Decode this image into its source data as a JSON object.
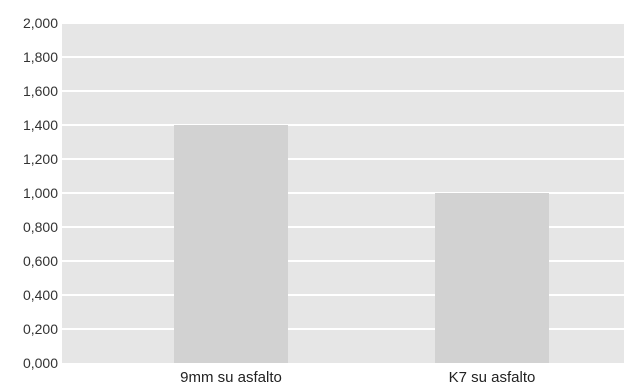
{
  "chart_data": {
    "type": "bar",
    "categories": [
      "9mm su asfalto",
      "K7 su asfalto"
    ],
    "values": [
      1.4,
      1.0
    ],
    "ylim": [
      0,
      2
    ],
    "yticks": [
      0,
      0.2,
      0.4,
      0.6,
      0.8,
      1.0,
      1.2,
      1.4,
      1.6,
      1.8,
      2.0
    ],
    "ytick_labels": [
      "0,000",
      "0,200",
      "0,400",
      "0,600",
      "0,800",
      "1,000",
      "1,200",
      "1,400",
      "1,600",
      "1,800",
      "2,000"
    ],
    "title": "",
    "xlabel": "",
    "ylabel": "",
    "grid": true,
    "legend": "none",
    "colors": {
      "plot_background": "#e6e6e6",
      "gridline": "#ffffff",
      "bar": "#d2d2d2"
    }
  }
}
